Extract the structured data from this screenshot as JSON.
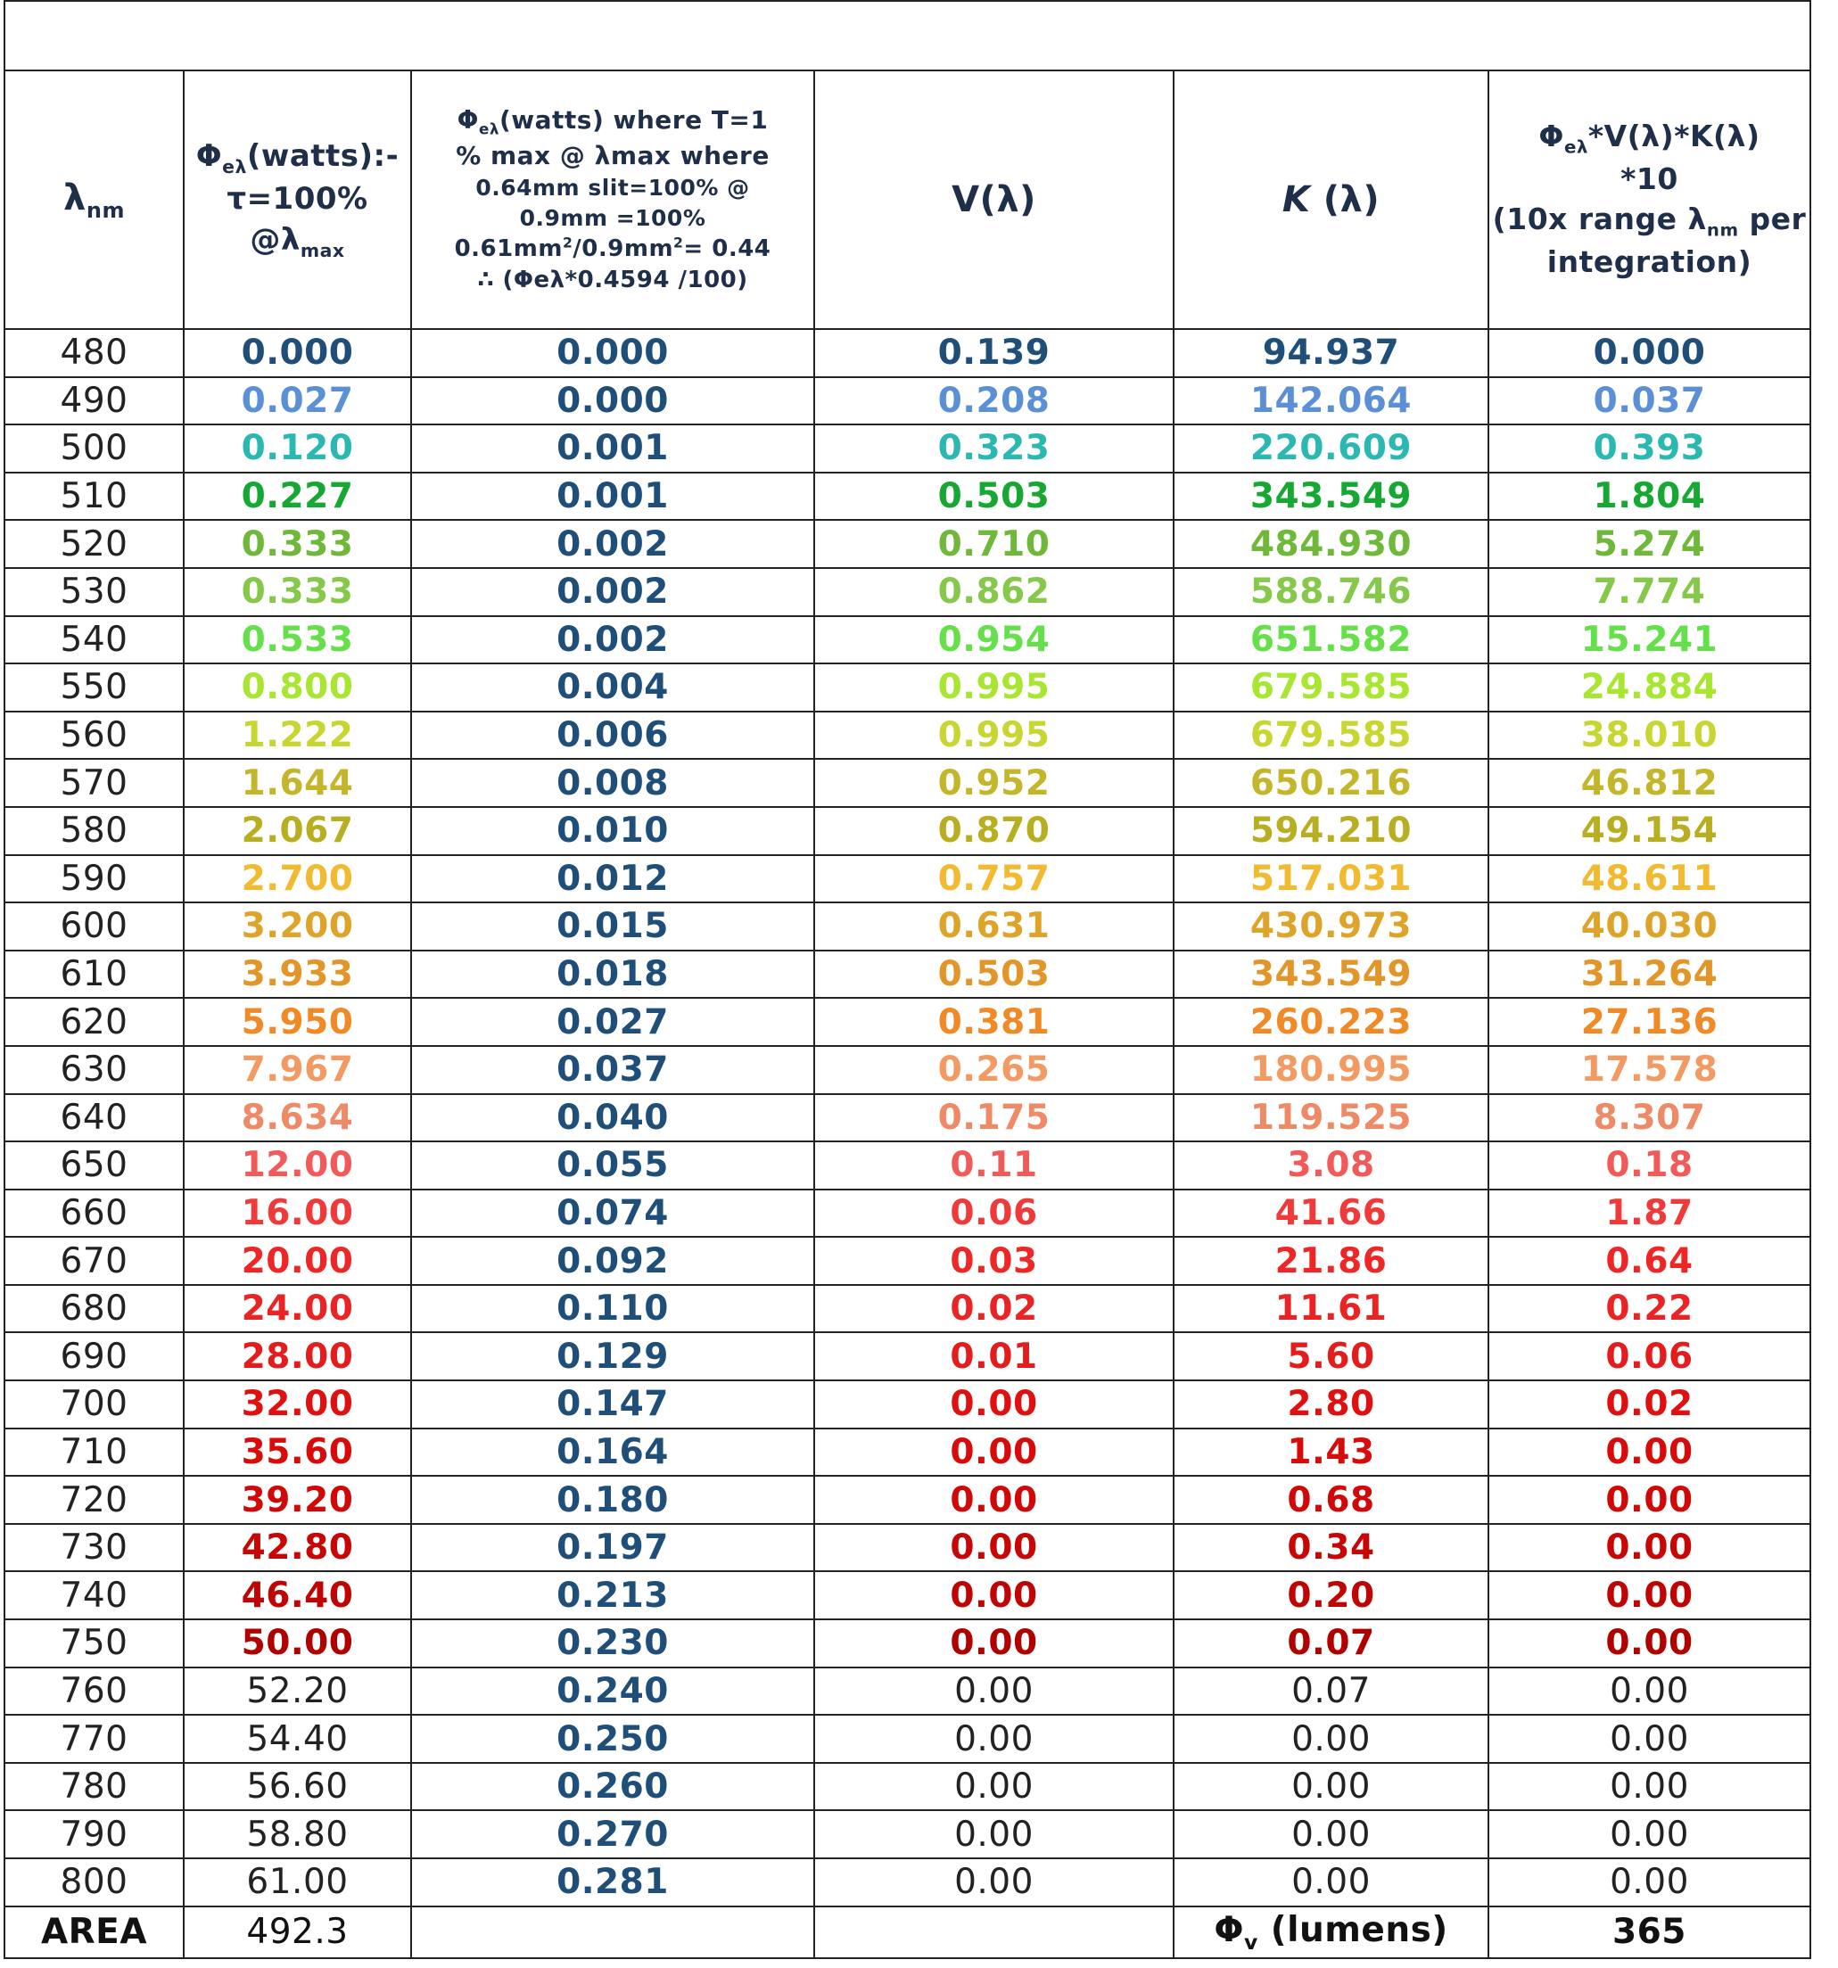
{
  "header": {
    "col_lambda": {
      "main": "λ",
      "sub": "nm"
    },
    "col_phi": {
      "line1_main": "Φ",
      "line1_sub": "eλ",
      "line1_rest": "(watts):-",
      "line2": "τ=100%",
      "line3_main": "@λ",
      "line3_sub": "max"
    },
    "col_phi_t": {
      "line1_main": "Φ",
      "line1_sub": "eλ",
      "line1_rest": "(watts) where T=1",
      "line2": "% max @ λmax where",
      "line3": "0.64mm slit=100% @",
      "line4": "0.9mm =100%",
      "line5_a": "0.61mm",
      "line5_sup1": "2",
      "line5_b": "/0.9mm",
      "line5_sup2": "2",
      "line5_c": "= 0.44",
      "line6": "∴ (Φeλ*0.4594 /100)"
    },
    "col_v": "V(λ)",
    "col_k": {
      "k": "K",
      "rest": " (λ)"
    },
    "col_product": {
      "line1_main": "Φ",
      "line1_sub": "eλ",
      "line1_rest": "*V(λ)*K(λ)",
      "line2": "*10",
      "line3_a": "(10x range λ",
      "line3_sub": "nm",
      "line3_b": " per",
      "line4": "integration)"
    }
  },
  "rows": [
    {
      "lambda": "480",
      "phi": "0.000",
      "phi_t": "0.000",
      "v": "0.139",
      "k": "94.937",
      "product": "0.000",
      "color": "#1f4e79",
      "bold": true
    },
    {
      "lambda": "490",
      "phi": "0.027",
      "phi_t": "0.000",
      "v": "0.208",
      "k": "142.064",
      "product": "0.037",
      "color": "#5b8fd6",
      "bold": true
    },
    {
      "lambda": "500",
      "phi": "0.120",
      "phi_t": "0.001",
      "v": "0.323",
      "k": "220.609",
      "product": "0.393",
      "color": "#2ab8b0",
      "bold": true
    },
    {
      "lambda": "510",
      "phi": "0.227",
      "phi_t": "0.001",
      "v": "0.503",
      "k": "343.549",
      "product": "1.804",
      "color": "#16a832",
      "bold": true
    },
    {
      "lambda": "520",
      "phi": "0.333",
      "phi_t": "0.002",
      "v": "0.710",
      "k": "484.930",
      "product": "5.274",
      "color": "#6fb83a",
      "bold": true
    },
    {
      "lambda": "530",
      "phi": "0.333",
      "phi_t": "0.002",
      "v": "0.862",
      "k": "588.746",
      "product": "7.774",
      "color": "#86c84a",
      "bold": true
    },
    {
      "lambda": "540",
      "phi": "0.533",
      "phi_t": "0.002",
      "v": "0.954",
      "k": "651.582",
      "product": "15.241",
      "color": "#66e04a",
      "bold": true
    },
    {
      "lambda": "550",
      "phi": "0.800",
      "phi_t": "0.004",
      "v": "0.995",
      "k": "679.585",
      "product": "24.884",
      "color": "#a8e632",
      "bold": true
    },
    {
      "lambda": "560",
      "phi": "1.222",
      "phi_t": "0.006",
      "v": "0.995",
      "k": "679.585",
      "product": "38.010",
      "color": "#c8d632",
      "bold": true
    },
    {
      "lambda": "570",
      "phi": "1.644",
      "phi_t": "0.008",
      "v": "0.952",
      "k": "650.216",
      "product": "46.812",
      "color": "#c4b62a",
      "bold": true
    },
    {
      "lambda": "580",
      "phi": "2.067",
      "phi_t": "0.010",
      "v": "0.870",
      "k": "594.210",
      "product": "49.154",
      "color": "#b8ae22",
      "bold": true
    },
    {
      "lambda": "590",
      "phi": "2.700",
      "phi_t": "0.012",
      "v": "0.757",
      "k": "517.031",
      "product": "48.611",
      "color": "#f2ba30",
      "bold": true
    },
    {
      "lambda": "600",
      "phi": "3.200",
      "phi_t": "0.015",
      "v": "0.631",
      "k": "430.973",
      "product": "40.030",
      "color": "#dea42a",
      "bold": true
    },
    {
      "lambda": "610",
      "phi": "3.933",
      "phi_t": "0.018",
      "v": "0.503",
      "k": "343.549",
      "product": "31.264",
      "color": "#e2962a",
      "bold": true
    },
    {
      "lambda": "620",
      "phi": "5.950",
      "phi_t": "0.027",
      "v": "0.381",
      "k": "260.223",
      "product": "27.136",
      "color": "#f08a26",
      "bold": true
    },
    {
      "lambda": "630",
      "phi": "7.967",
      "phi_t": "0.037",
      "v": "0.265",
      "k": "180.995",
      "product": "17.578",
      "color": "#f29a62",
      "bold": true
    },
    {
      "lambda": "640",
      "phi": "8.634",
      "phi_t": "0.040",
      "v": "0.175",
      "k": "119.525",
      "product": "8.307",
      "color": "#ee8a66",
      "bold": true
    },
    {
      "lambda": "650",
      "phi": "12.00",
      "phi_t": "0.055",
      "v": "0.11",
      "k": "3.08",
      "product": "0.18",
      "color": "#f25a5a",
      "bold": true
    },
    {
      "lambda": "660",
      "phi": "16.00",
      "phi_t": "0.074",
      "v": "0.06",
      "k": "41.66",
      "product": "1.87",
      "color": "#f03a3a",
      "bold": true
    },
    {
      "lambda": "670",
      "phi": "20.00",
      "phi_t": "0.092",
      "v": "0.03",
      "k": "21.86",
      "product": "0.64",
      "color": "#ee2626",
      "bold": true
    },
    {
      "lambda": "680",
      "phi": "24.00",
      "phi_t": "0.110",
      "v": "0.02",
      "k": "11.61",
      "product": "0.22",
      "color": "#ea2424",
      "bold": true
    },
    {
      "lambda": "690",
      "phi": "28.00",
      "phi_t": "0.129",
      "v": "0.01",
      "k": "5.60",
      "product": "0.06",
      "color": "#e41c1c",
      "bold": true
    },
    {
      "lambda": "700",
      "phi": "32.00",
      "phi_t": "0.147",
      "v": "0.00",
      "k": "2.80",
      "product": "0.02",
      "color": "#e01010",
      "bold": true
    },
    {
      "lambda": "710",
      "phi": "35.60",
      "phi_t": "0.164",
      "v": "0.00",
      "k": "1.43",
      "product": "0.00",
      "color": "#d80a0a",
      "bold": true
    },
    {
      "lambda": "720",
      "phi": "39.20",
      "phi_t": "0.180",
      "v": "0.00",
      "k": "0.68",
      "product": "0.00",
      "color": "#d00808",
      "bold": true
    },
    {
      "lambda": "730",
      "phi": "42.80",
      "phi_t": "0.197",
      "v": "0.00",
      "k": "0.34",
      "product": "0.00",
      "color": "#c80606",
      "bold": true
    },
    {
      "lambda": "740",
      "phi": "46.40",
      "phi_t": "0.213",
      "v": "0.00",
      "k": "0.20",
      "product": "0.00",
      "color": "#c00404",
      "bold": true
    },
    {
      "lambda": "750",
      "phi": "50.00",
      "phi_t": "0.230",
      "v": "0.00",
      "k": "0.07",
      "product": "0.00",
      "color": "#b00000",
      "bold": true
    },
    {
      "lambda": "760",
      "phi": "52.20",
      "phi_t": "0.240",
      "v": "0.00",
      "k": "0.07",
      "product": "0.00",
      "color": "#222222",
      "bold": false
    },
    {
      "lambda": "770",
      "phi": "54.40",
      "phi_t": "0.250",
      "v": "0.00",
      "k": "0.00",
      "product": "0.00",
      "color": "#222222",
      "bold": false
    },
    {
      "lambda": "780",
      "phi": "56.60",
      "phi_t": "0.260",
      "v": "0.00",
      "k": "0.00",
      "product": "0.00",
      "color": "#222222",
      "bold": false
    },
    {
      "lambda": "790",
      "phi": "58.80",
      "phi_t": "0.270",
      "v": "0.00",
      "k": "0.00",
      "product": "0.00",
      "color": "#222222",
      "bold": false
    },
    {
      "lambda": "800",
      "phi": "61.00",
      "phi_t": "0.281",
      "v": "0.00",
      "k": "0.00",
      "product": "0.00",
      "color": "#222222",
      "bold": false
    }
  ],
  "footer": {
    "area_label": "AREA",
    "area_value": "492.3",
    "phi_v_main": "Φ",
    "phi_v_sub": "v",
    "phi_v_rest": " (lumens)",
    "result": "365"
  },
  "colors": {
    "col2_text": "#1f4e79",
    "grid": "#222222",
    "header_text": "#1f2f4a"
  }
}
